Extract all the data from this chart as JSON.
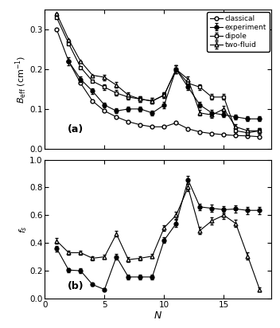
{
  "panel_a": {
    "N": [
      1,
      2,
      3,
      4,
      5,
      6,
      7,
      8,
      9,
      10,
      11,
      12,
      13,
      14,
      15,
      16,
      17,
      18
    ],
    "experiment": [
      null,
      0.22,
      0.175,
      0.145,
      0.11,
      0.095,
      0.1,
      0.1,
      0.09,
      0.11,
      0.2,
      0.155,
      0.11,
      0.09,
      0.085,
      0.08,
      0.075,
      0.075
    ],
    "experiment_err": [
      null,
      0.01,
      0.008,
      0.007,
      0.006,
      0.006,
      0.006,
      0.006,
      0.006,
      0.008,
      0.01,
      0.008,
      0.007,
      0.007,
      0.006,
      0.006,
      0.006,
      0.006
    ],
    "classical": [
      0.3,
      0.22,
      0.165,
      0.12,
      0.095,
      0.08,
      0.068,
      0.06,
      0.055,
      0.055,
      0.065,
      0.05,
      0.042,
      0.038,
      0.035,
      0.033,
      0.032,
      0.03
    ],
    "dipole": [
      0.33,
      0.265,
      0.205,
      0.17,
      0.155,
      0.14,
      0.13,
      0.125,
      0.12,
      0.135,
      0.2,
      0.165,
      0.155,
      0.13,
      0.13,
      0.045,
      0.04,
      0.045
    ],
    "dipole_err": [
      null,
      null,
      null,
      null,
      0.007,
      0.007,
      0.007,
      0.007,
      0.007,
      0.007,
      0.01,
      0.008,
      0.007,
      0.007,
      0.007,
      0.007,
      0.007,
      0.007
    ],
    "two_fluid": [
      0.34,
      0.275,
      0.22,
      0.185,
      0.18,
      0.16,
      0.135,
      0.125,
      0.12,
      0.135,
      0.2,
      0.175,
      0.09,
      0.085,
      0.1,
      0.055,
      0.045,
      0.045
    ],
    "two_fluid_err": [
      null,
      null,
      null,
      null,
      0.007,
      0.007,
      0.007,
      0.007,
      0.007,
      0.007,
      0.01,
      0.008,
      0.007,
      0.007,
      0.007,
      0.007,
      0.007,
      0.007
    ],
    "ylabel": "$B_{\\mathrm{eff}}$ (cm$^{-1}$)",
    "ylim": [
      0.0,
      0.35
    ],
    "yticks": [
      0.0,
      0.1,
      0.2,
      0.3
    ],
    "label": "(a)"
  },
  "panel_b": {
    "N": [
      1,
      2,
      3,
      4,
      5,
      6,
      7,
      8,
      9,
      10,
      11,
      12,
      13,
      14,
      15,
      16,
      17,
      18
    ],
    "experiment": [
      0.36,
      0.205,
      0.2,
      0.1,
      0.065,
      0.3,
      0.155,
      0.155,
      0.155,
      0.42,
      0.54,
      0.855,
      0.66,
      0.65,
      0.64,
      0.645,
      0.635,
      0.635
    ],
    "experiment_err": [
      0.02,
      0.015,
      0.015,
      0.01,
      0.01,
      0.02,
      0.015,
      0.015,
      0.015,
      0.02,
      0.025,
      0.03,
      0.025,
      0.025,
      0.025,
      0.025,
      0.025,
      0.025
    ],
    "two_fluid": [
      0.415,
      0.33,
      0.33,
      0.29,
      0.3,
      0.465,
      0.28,
      0.29,
      0.305,
      0.51,
      0.6,
      0.8,
      0.49,
      0.56,
      0.6,
      0.54,
      0.305,
      0.065
    ],
    "two_fluid_err": [
      0.02,
      0.015,
      0.015,
      0.015,
      0.015,
      0.02,
      0.015,
      0.015,
      0.015,
      0.02,
      0.025,
      0.025,
      0.025,
      0.025,
      0.025,
      0.025,
      0.025,
      0.015
    ],
    "ylabel": "$f_s$",
    "ylim": [
      0.0,
      1.0
    ],
    "yticks": [
      0.0,
      0.2,
      0.4,
      0.6,
      0.8,
      1.0
    ],
    "label": "(b)"
  },
  "xlabel": "$N$",
  "xlim": [
    0,
    19
  ],
  "xticks": [
    0,
    5,
    10,
    15
  ],
  "bg_color": "white"
}
